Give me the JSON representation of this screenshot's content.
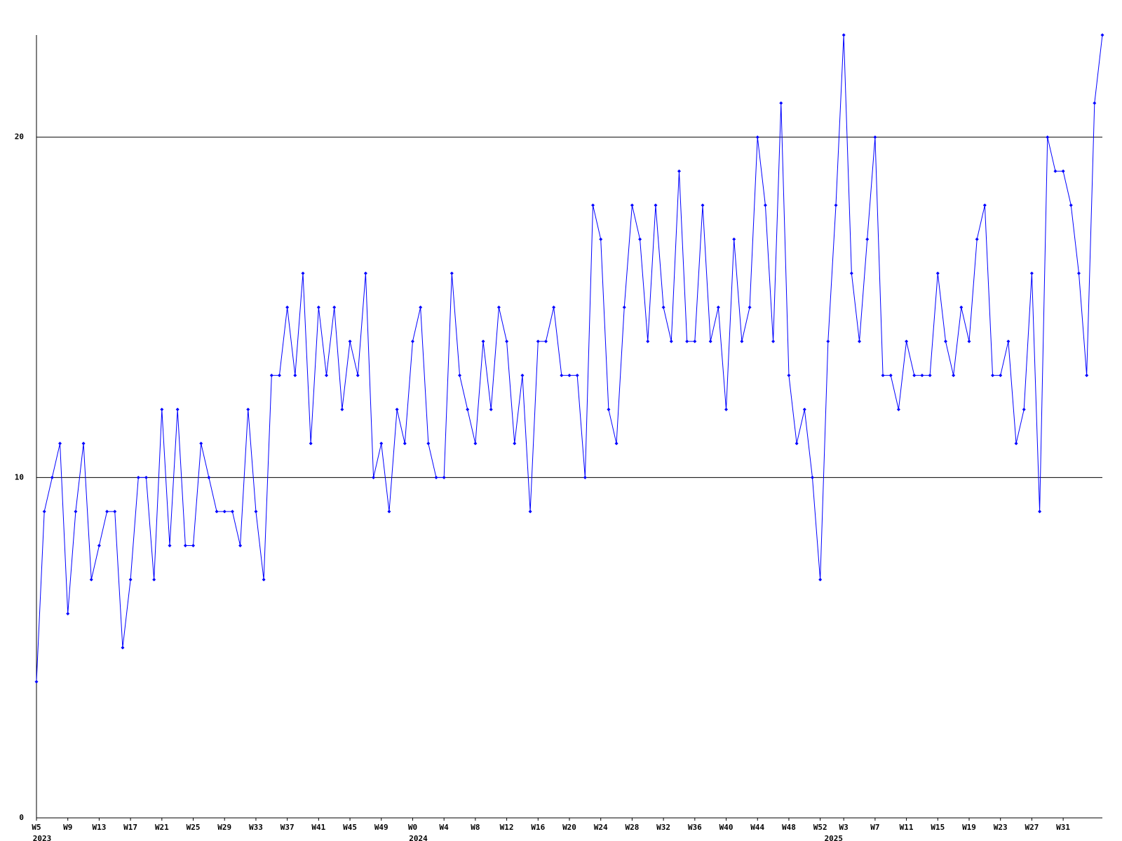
{
  "chart_data": {
    "type": "line",
    "categories": [
      "W5",
      null,
      null,
      null,
      "W9",
      null,
      null,
      null,
      "W13",
      null,
      null,
      null,
      "W17",
      null,
      null,
      null,
      "W21",
      null,
      null,
      null,
      "W25",
      null,
      null,
      null,
      "W29",
      null,
      null,
      null,
      "W33",
      null,
      null,
      null,
      "W37",
      null,
      null,
      null,
      "W41",
      null,
      null,
      null,
      "W45",
      null,
      null,
      null,
      "W49",
      null,
      null,
      null,
      "W0",
      null,
      null,
      null,
      "W4",
      null,
      null,
      null,
      "W8",
      null,
      null,
      null,
      "W12",
      null,
      null,
      null,
      "W16",
      null,
      null,
      null,
      "W20",
      null,
      null,
      null,
      "W24",
      null,
      null,
      null,
      "W28",
      null,
      null,
      null,
      "W32",
      null,
      null,
      null,
      "W36",
      null,
      null,
      null,
      "W40",
      null,
      null,
      null,
      "W44",
      null,
      null,
      null,
      "W48",
      null,
      null,
      null,
      "W52",
      null,
      null,
      "W3",
      null,
      null,
      null,
      "W7",
      null,
      null,
      null,
      "W11",
      null,
      null,
      null,
      "W15",
      null,
      null,
      null,
      "W19",
      null,
      null,
      null,
      "W23",
      null,
      null,
      null,
      "W27",
      null,
      null,
      null,
      "W31",
      null,
      null,
      null,
      null,
      null
    ],
    "year_labels": [
      "2023",
      null,
      null,
      null,
      null,
      null,
      null,
      null,
      null,
      null,
      null,
      null,
      null,
      null,
      null,
      null,
      null,
      null,
      null,
      null,
      null,
      null,
      null,
      null,
      null,
      null,
      null,
      null,
      null,
      null,
      null,
      null,
      null,
      null,
      null,
      null,
      null,
      null,
      null,
      null,
      null,
      null,
      null,
      null,
      null,
      null,
      null,
      null,
      "2024",
      null,
      null,
      null,
      null,
      null,
      null,
      null,
      null,
      null,
      null,
      null,
      null,
      null,
      null,
      null,
      null,
      null,
      null,
      null,
      null,
      null,
      null,
      null,
      null,
      null,
      null,
      null,
      null,
      null,
      null,
      null,
      null,
      null,
      null,
      null,
      null,
      null,
      null,
      null,
      null,
      null,
      null,
      null,
      null,
      null,
      null,
      null,
      null,
      null,
      null,
      null,
      null,
      "2025",
      null,
      null,
      null,
      null,
      null,
      null,
      null,
      null,
      null,
      null,
      null,
      null,
      null,
      null,
      null,
      null,
      null,
      null,
      null,
      null,
      null,
      null,
      null,
      null,
      null,
      null,
      null,
      null,
      null,
      null,
      null,
      null,
      null,
      null,
      null
    ],
    "values": [
      4,
      9,
      10,
      11,
      6,
      9,
      11,
      7,
      8,
      9,
      9,
      5,
      7,
      10,
      10,
      7,
      12,
      8,
      12,
      8,
      8,
      11,
      10,
      9,
      9,
      9,
      8,
      12,
      9,
      7,
      13,
      13,
      15,
      13,
      16,
      11,
      15,
      13,
      15,
      12,
      14,
      13,
      16,
      10,
      11,
      9,
      12,
      11,
      14,
      15,
      11,
      10,
      10,
      16,
      13,
      12,
      11,
      14,
      12,
      15,
      14,
      11,
      13,
      9,
      14,
      14,
      15,
      13,
      13,
      13,
      10,
      18,
      17,
      12,
      11,
      15,
      18,
      17,
      14,
      18,
      15,
      14,
      19,
      14,
      14,
      18,
      14,
      15,
      12,
      17,
      14,
      15,
      20,
      18,
      14,
      21,
      13,
      11,
      12,
      10,
      7,
      14,
      18,
      23,
      16,
      14,
      17,
      20,
      13,
      13,
      12,
      14,
      13,
      13,
      13,
      16,
      14,
      13,
      15,
      14,
      17,
      18,
      13,
      13,
      14,
      11,
      12,
      16,
      9,
      20,
      19,
      19,
      18,
      16,
      13,
      21,
      23
    ],
    "color": "#0000ff",
    "ylim": [
      0,
      23
    ],
    "yticks": [
      0,
      10,
      20
    ],
    "grid": true
  }
}
